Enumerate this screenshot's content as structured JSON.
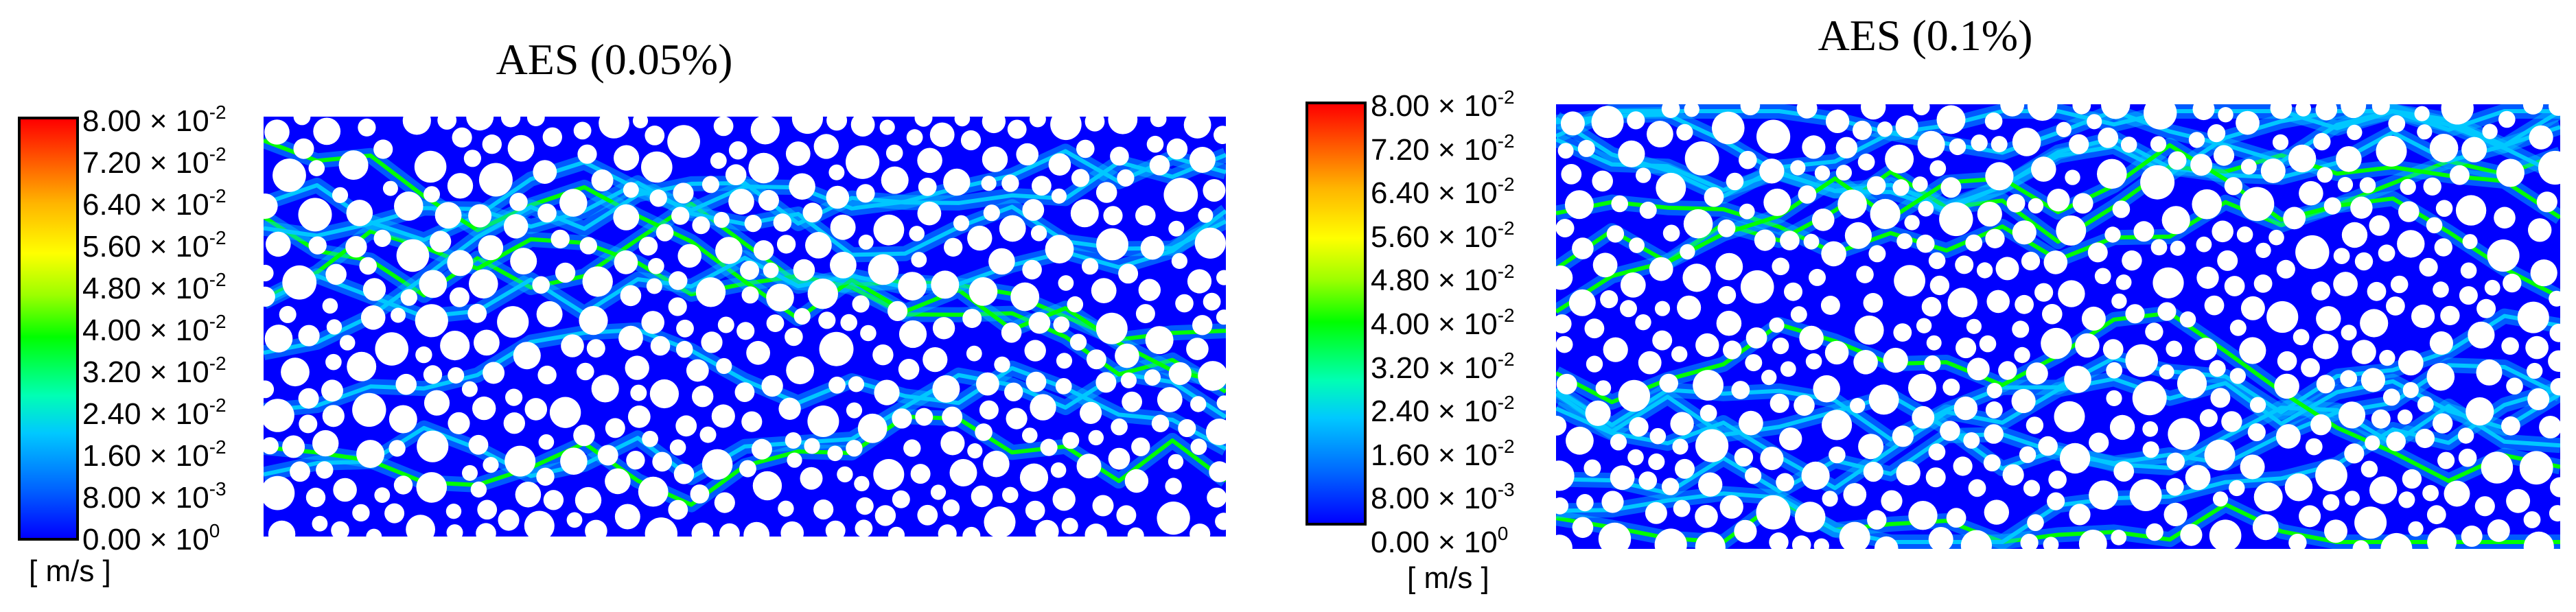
{
  "panels": [
    {
      "title": "AES (0.05%)",
      "seed": 7,
      "style": "stream"
    },
    {
      "title": "AES (0.1%)",
      "seed": 23,
      "style": "branch"
    }
  ],
  "legend": {
    "ticks": [
      {
        "mant": "8.00",
        "exp": "-2"
      },
      {
        "mant": "7.20",
        "exp": "-2"
      },
      {
        "mant": "6.40",
        "exp": "-2"
      },
      {
        "mant": "5.60",
        "exp": "-2"
      },
      {
        "mant": "4.80",
        "exp": "-2"
      },
      {
        "mant": "4.00",
        "exp": "-2"
      },
      {
        "mant": "3.20",
        "exp": "-2"
      },
      {
        "mant": "2.40",
        "exp": "-2"
      },
      {
        "mant": "1.60",
        "exp": "-2"
      },
      {
        "mant": "8.00",
        "exp": "-3"
      },
      {
        "mant": "0.00",
        "exp": "0"
      }
    ],
    "unit": "[ m/s ]",
    "colors": [
      "#0000ff",
      "#00c8ff",
      "#00ff00",
      "#ffff00",
      "#ff0000"
    ]
  }
}
